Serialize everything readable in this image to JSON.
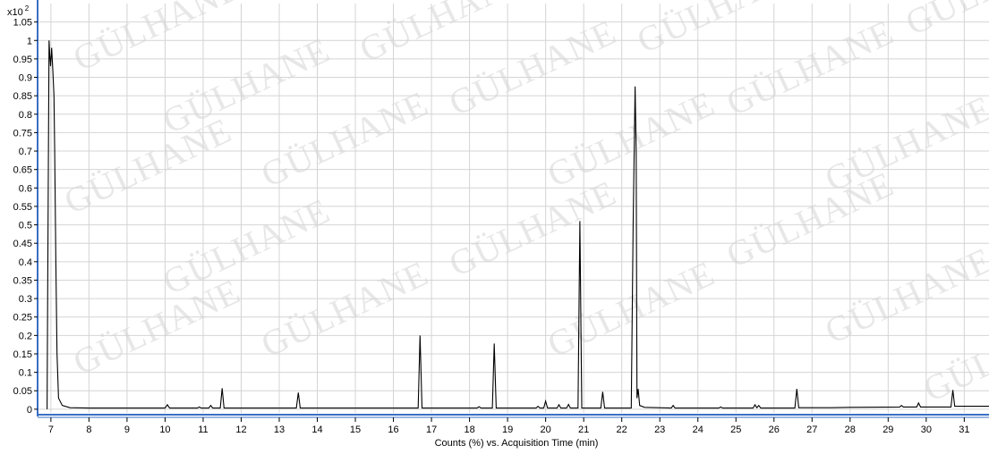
{
  "chart_data": {
    "type": "line",
    "title": "",
    "xlabel": "Counts (%) vs. Acquisition Time (min)",
    "ylabel": "",
    "y_multiplier": "x10",
    "y_multiplier_exponent": "2",
    "xlim": [
      6.65,
      31.65
    ],
    "ylim": [
      -0.01,
      1.1
    ],
    "x_ticks": [
      "7",
      "8",
      "9",
      "10",
      "11",
      "12",
      "13",
      "14",
      "15",
      "16",
      "17",
      "18",
      "19",
      "20",
      "21",
      "22",
      "23",
      "24",
      "25",
      "26",
      "27",
      "28",
      "29",
      "30",
      "31"
    ],
    "y_ticks": [
      "0",
      "0.05",
      "0.1",
      "0.15",
      "0.2",
      "0.25",
      "0.3",
      "0.35",
      "0.4",
      "0.45",
      "0.5",
      "0.55",
      "0.6",
      "0.65",
      "0.7",
      "0.75",
      "0.8",
      "0.85",
      "0.9",
      "0.95",
      "1",
      "1.05"
    ],
    "grid": true,
    "watermark_text": "GÜLHANE",
    "colors": {
      "line": "#000000",
      "axis": "#3a6fc4",
      "grid": "#d4d4d4",
      "watermark": "#e7e7e7"
    },
    "series": [
      {
        "values": [
          [
            6.9,
            0.0
          ],
          [
            6.93,
            0.6
          ],
          [
            6.95,
            1.0
          ],
          [
            6.97,
            0.96
          ],
          [
            6.99,
            0.93
          ],
          [
            7.02,
            0.98
          ],
          [
            7.05,
            0.92
          ],
          [
            7.08,
            0.85
          ],
          [
            7.1,
            0.7
          ],
          [
            7.13,
            0.4
          ],
          [
            7.16,
            0.15
          ],
          [
            7.2,
            0.03
          ],
          [
            7.3,
            0.01
          ],
          [
            7.5,
            0.004
          ],
          [
            8.0,
            0.003
          ],
          [
            10.0,
            0.003
          ],
          [
            10.06,
            0.012
          ],
          [
            10.12,
            0.003
          ],
          [
            10.85,
            0.003
          ],
          [
            10.9,
            0.006
          ],
          [
            10.95,
            0.003
          ],
          [
            11.15,
            0.003
          ],
          [
            11.2,
            0.01
          ],
          [
            11.25,
            0.003
          ],
          [
            11.45,
            0.003
          ],
          [
            11.5,
            0.057
          ],
          [
            11.55,
            0.003
          ],
          [
            13.45,
            0.003
          ],
          [
            13.5,
            0.045
          ],
          [
            13.55,
            0.003
          ],
          [
            16.65,
            0.003
          ],
          [
            16.7,
            0.2
          ],
          [
            16.75,
            0.003
          ],
          [
            18.2,
            0.003
          ],
          [
            18.25,
            0.007
          ],
          [
            18.3,
            0.003
          ],
          [
            18.6,
            0.003
          ],
          [
            18.65,
            0.178
          ],
          [
            18.7,
            0.003
          ],
          [
            19.75,
            0.003
          ],
          [
            19.8,
            0.008
          ],
          [
            19.85,
            0.003
          ],
          [
            19.95,
            0.003
          ],
          [
            20.0,
            0.022
          ],
          [
            20.05,
            0.003
          ],
          [
            20.3,
            0.003
          ],
          [
            20.35,
            0.012
          ],
          [
            20.4,
            0.003
          ],
          [
            20.55,
            0.003
          ],
          [
            20.6,
            0.013
          ],
          [
            20.65,
            0.003
          ],
          [
            20.85,
            0.003
          ],
          [
            20.9,
            0.51
          ],
          [
            20.95,
            0.003
          ],
          [
            21.45,
            0.003
          ],
          [
            21.5,
            0.047
          ],
          [
            21.55,
            0.003
          ],
          [
            22.25,
            0.003
          ],
          [
            22.3,
            0.5
          ],
          [
            22.35,
            0.875
          ],
          [
            22.38,
            0.7
          ],
          [
            22.4,
            0.03
          ],
          [
            22.43,
            0.055
          ],
          [
            22.47,
            0.01
          ],
          [
            22.6,
            0.005
          ],
          [
            23.3,
            0.003
          ],
          [
            23.35,
            0.01
          ],
          [
            23.4,
            0.003
          ],
          [
            24.55,
            0.003
          ],
          [
            24.6,
            0.006
          ],
          [
            24.65,
            0.003
          ],
          [
            25.45,
            0.003
          ],
          [
            25.5,
            0.012
          ],
          [
            25.55,
            0.004
          ],
          [
            25.6,
            0.01
          ],
          [
            25.65,
            0.003
          ],
          [
            26.55,
            0.003
          ],
          [
            26.6,
            0.055
          ],
          [
            26.65,
            0.004
          ],
          [
            27.5,
            0.004
          ],
          [
            28.0,
            0.005
          ],
          [
            29.3,
            0.006
          ],
          [
            29.35,
            0.01
          ],
          [
            29.4,
            0.006
          ],
          [
            29.75,
            0.006
          ],
          [
            29.8,
            0.017
          ],
          [
            29.85,
            0.006
          ],
          [
            30.65,
            0.006
          ],
          [
            30.7,
            0.052
          ],
          [
            30.75,
            0.008
          ],
          [
            31.65,
            0.008
          ]
        ]
      }
    ]
  }
}
